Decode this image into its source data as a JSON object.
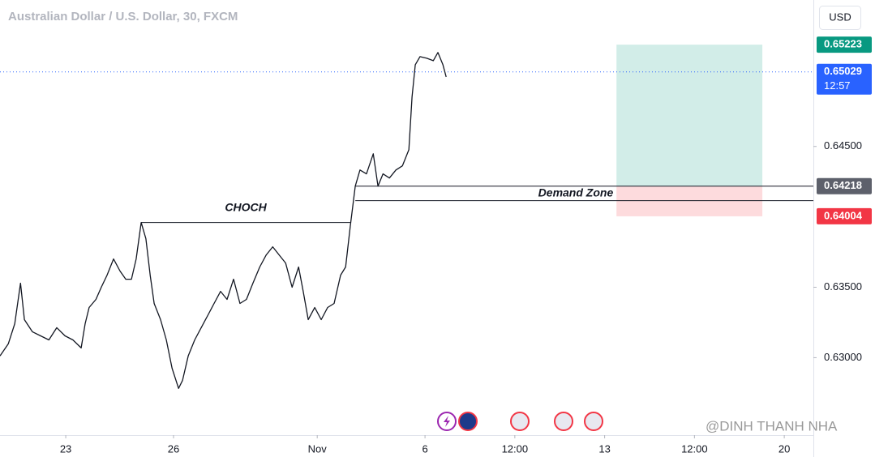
{
  "chart_data": {
    "type": "line",
    "title": "Australian Dollar / U.S. Dollar, 30, FXCM",
    "currency": "USD",
    "watermark": "@DINH THANH NHA",
    "color": "#131722",
    "x": [
      -1.83,
      -1.6,
      -1.42,
      -1.26,
      -1.15,
      -0.93,
      -0.7,
      -0.47,
      -0.25,
      -0.02,
      0.2,
      0.43,
      0.54,
      0.65,
      0.84,
      0.99,
      1.15,
      1.33,
      1.51,
      1.67,
      1.83,
      1.96,
      2.1,
      2.23,
      2.35,
      2.46,
      2.64,
      2.8,
      2.96,
      3.14,
      3.25,
      3.41,
      3.59,
      3.77,
      3.95,
      4.13,
      4.31,
      4.49,
      4.67,
      4.85,
      5.03,
      5.21,
      5.4,
      5.58,
      5.76,
      5.94,
      6.12,
      6.3,
      6.48,
      6.61,
      6.75,
      6.93,
      7.11,
      7.29,
      7.47,
      7.65,
      7.79,
      7.92,
      8.06,
      8.19,
      8.37,
      8.56,
      8.69,
      8.83,
      9.01,
      9.19,
      9.37,
      9.55,
      9.64,
      9.73,
      9.86,
      10.05,
      10.23,
      10.36,
      10.5,
      10.59
    ],
    "values": [
      0.63012,
      0.63098,
      0.63241,
      0.63529,
      0.6327,
      0.63184,
      0.63155,
      0.63126,
      0.63213,
      0.63155,
      0.63126,
      0.63069,
      0.63241,
      0.63356,
      0.63414,
      0.635,
      0.63586,
      0.63701,
      0.63615,
      0.63557,
      0.63557,
      0.63701,
      0.6396,
      0.63845,
      0.63586,
      0.63385,
      0.6327,
      0.63126,
      0.62925,
      0.62782,
      0.62839,
      0.63012,
      0.63126,
      0.63213,
      0.63299,
      0.63385,
      0.63471,
      0.63414,
      0.63557,
      0.63385,
      0.63414,
      0.63529,
      0.63644,
      0.6373,
      0.63787,
      0.6373,
      0.63672,
      0.635,
      0.63644,
      0.63471,
      0.6327,
      0.63356,
      0.6327,
      0.63356,
      0.63385,
      0.63586,
      0.63644,
      0.63931,
      0.64218,
      0.64333,
      0.64305,
      0.64448,
      0.64218,
      0.64305,
      0.64276,
      0.64333,
      0.64362,
      0.64477,
      0.64851,
      0.6508,
      0.65138,
      0.65126,
      0.65109,
      0.65167,
      0.6508,
      0.64994
    ],
    "xlim": [
      -1.83,
      20.81
    ],
    "ylim": [
      0.6245,
      0.6554
    ],
    "yticks": [
      {
        "value": 0.63,
        "label": "0.63000"
      },
      {
        "value": 0.635,
        "label": "0.63500"
      },
      {
        "value": 0.645,
        "label": "0.64500"
      }
    ],
    "xticks": [
      {
        "value": 0,
        "label": "23"
      },
      {
        "value": 3,
        "label": "26"
      },
      {
        "value": 7,
        "label": "Nov"
      },
      {
        "value": 10,
        "label": "6"
      },
      {
        "value": 12.5,
        "label": "12:00"
      },
      {
        "value": 15,
        "label": "13"
      },
      {
        "value": 17.5,
        "label": "12:00"
      },
      {
        "value": 20,
        "label": "20"
      }
    ],
    "last_price": 0.65029,
    "countdown": "12:57",
    "annotations": [
      {
        "text": "CHOCH",
        "x0": 2.1,
        "x1": 7.92,
        "y": 0.6396
      },
      {
        "text": "Demand Zone",
        "x0": 8.06,
        "x1": 20.81,
        "y": 0.64218,
        "y_low": 0.64115
      }
    ],
    "position": {
      "x0": 15.33,
      "x1": 19.39,
      "entry": 0.64218,
      "target": 0.65223,
      "stop": 0.64004
    }
  }
}
